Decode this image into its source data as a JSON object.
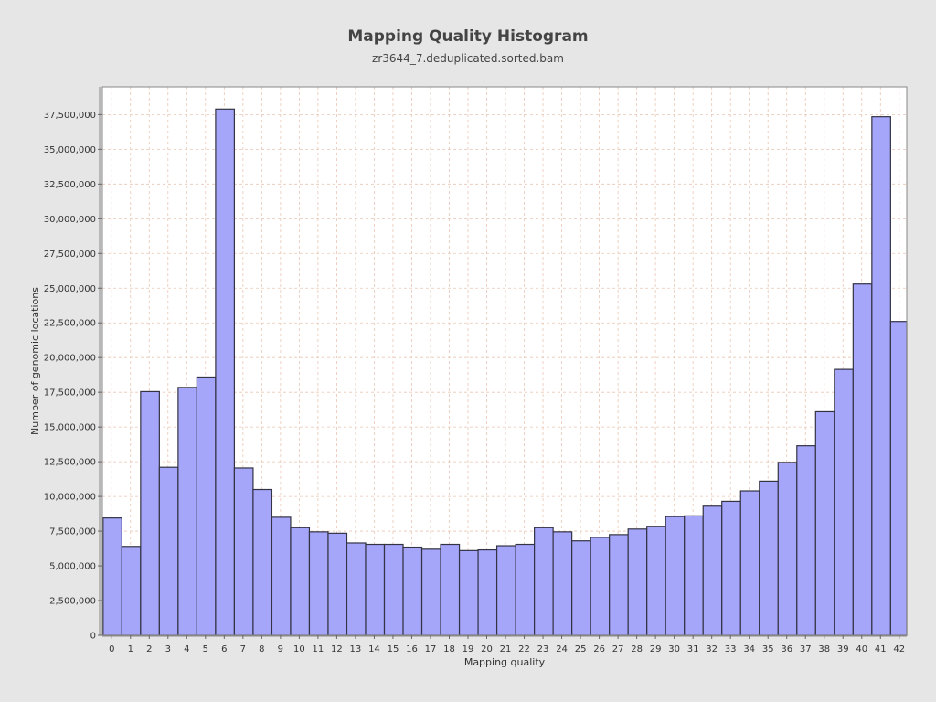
{
  "chart_data": {
    "type": "bar",
    "title": "Mapping Quality Histogram",
    "subtitle": "zr3644_7.deduplicated.sorted.bam",
    "xlabel": "Mapping quality",
    "ylabel": "Number of genomic locations",
    "xlim": [
      -0.5,
      42.4
    ],
    "ylim": [
      0,
      39500000
    ],
    "grid": true,
    "ytick_values": [
      0,
      2500000,
      5000000,
      7500000,
      10000000,
      12500000,
      15000000,
      17500000,
      20000000,
      22500000,
      25000000,
      27500000,
      30000000,
      32500000,
      35000000,
      37500000
    ],
    "ytick_labels": [
      "0",
      "2,500,000",
      "5,000,000",
      "7,500,000",
      "10,000,000",
      "12,500,000",
      "15,000,000",
      "17,500,000",
      "20,000,000",
      "22,500,000",
      "25,000,000",
      "27,500,000",
      "30,000,000",
      "32,500,000",
      "35,000,000",
      "37,500,000"
    ],
    "xtick_values": [
      0,
      1,
      2,
      3,
      4,
      5,
      6,
      7,
      8,
      9,
      10,
      11,
      12,
      13,
      14,
      15,
      16,
      17,
      18,
      19,
      20,
      21,
      22,
      23,
      24,
      25,
      26,
      27,
      28,
      29,
      30,
      31,
      32,
      33,
      34,
      35,
      36,
      37,
      38,
      39,
      40,
      41,
      42
    ],
    "xtick_labels": [
      "0",
      "1",
      "2",
      "3",
      "4",
      "5",
      "6",
      "7",
      "8",
      "9",
      "10",
      "11",
      "12",
      "13",
      "14",
      "15",
      "16",
      "17",
      "18",
      "19",
      "20",
      "21",
      "22",
      "23",
      "24",
      "25",
      "26",
      "27",
      "28",
      "29",
      "30",
      "31",
      "32",
      "33",
      "34",
      "35",
      "36",
      "37",
      "38",
      "39",
      "40",
      "41",
      "42"
    ],
    "bars": [
      {
        "x": 0,
        "value": 8450000
      },
      {
        "x": 1,
        "value": 6400000
      },
      {
        "x": 2,
        "value": 17550000
      },
      {
        "x": 3,
        "value": 12100000
      },
      {
        "x": 4,
        "value": 17850000
      },
      {
        "x": 5,
        "value": 18600000
      },
      {
        "x": 6,
        "value": 37900000
      },
      {
        "x": 7,
        "value": 12050000
      },
      {
        "x": 8,
        "value": 10500000
      },
      {
        "x": 9,
        "value": 8500000
      },
      {
        "x": 10,
        "value": 7750000
      },
      {
        "x": 11,
        "value": 7450000
      },
      {
        "x": 12,
        "value": 7350000
      },
      {
        "x": 13,
        "value": 6650000
      },
      {
        "x": 14,
        "value": 6550000
      },
      {
        "x": 15,
        "value": 6550000
      },
      {
        "x": 16,
        "value": 6350000
      },
      {
        "x": 17,
        "value": 6200000
      },
      {
        "x": 18,
        "value": 6550000
      },
      {
        "x": 19,
        "value": 6100000
      },
      {
        "x": 20,
        "value": 6150000
      },
      {
        "x": 21,
        "value": 6450000
      },
      {
        "x": 22,
        "value": 6550000
      },
      {
        "x": 23,
        "value": 7750000
      },
      {
        "x": 24,
        "value": 7450000
      },
      {
        "x": 25,
        "value": 6800000
      },
      {
        "x": 26,
        "value": 7050000
      },
      {
        "x": 27,
        "value": 7250000
      },
      {
        "x": 28,
        "value": 7650000
      },
      {
        "x": 29,
        "value": 7850000
      },
      {
        "x": 30,
        "value": 8550000
      },
      {
        "x": 31,
        "value": 8600000
      },
      {
        "x": 32,
        "value": 9300000
      },
      {
        "x": 33,
        "value": 9650000
      },
      {
        "x": 34,
        "value": 10400000
      },
      {
        "x": 35,
        "value": 11100000
      },
      {
        "x": 36,
        "value": 12450000
      },
      {
        "x": 37,
        "value": 13650000
      },
      {
        "x": 38,
        "value": 16100000
      },
      {
        "x": 39,
        "value": 19150000
      },
      {
        "x": 40,
        "value": 25300000
      },
      {
        "x": 41,
        "value": 37350000
      },
      {
        "x": 42,
        "value": 22600000
      }
    ],
    "colors": {
      "bar_fill": "#a5a5fa",
      "bar_edge": "#333344",
      "plot_bg": "#ffffff",
      "page_bg": "#e6e6e6",
      "grid": "#e9c6b3"
    }
  }
}
